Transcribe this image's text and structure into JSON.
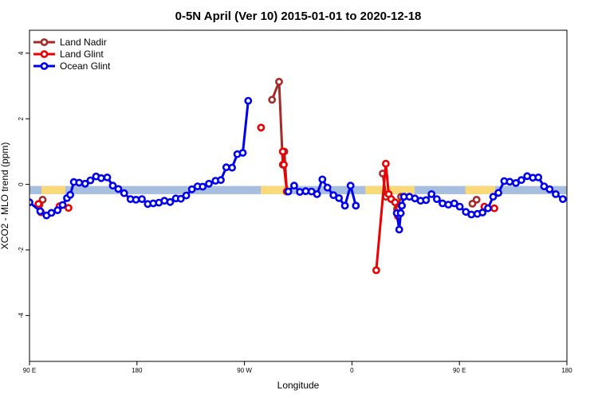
{
  "chart_data": {
    "type": "line",
    "title": "0-5N April (Ver 10)   2015-01-01 to 2020-12-18",
    "xlabel": "Longitude",
    "ylabel": "XCO2 - MLO trend (ppm)",
    "xlim": [
      0,
      360
    ],
    "ylim": [
      -5.4,
      4.7
    ],
    "xticks": [
      {
        "value": 0,
        "label": "90 E"
      },
      {
        "value": 72,
        "label": "180"
      },
      {
        "value": 144,
        "label": "90 W"
      },
      {
        "value": 216,
        "label": "0"
      },
      {
        "value": 288,
        "label": "90 E"
      },
      {
        "value": 360,
        "label": "180"
      }
    ],
    "yticks": [
      {
        "value": -4,
        "label": "-4"
      },
      {
        "value": -2,
        "label": "-2"
      },
      {
        "value": 0,
        "label": "0"
      },
      {
        "value": 2,
        "label": "2"
      },
      {
        "value": 4,
        "label": "4"
      }
    ],
    "legend_position": "top-left",
    "reference_band": {
      "y_range": [
        -0.3,
        -0.05
      ],
      "ocean_color": "#a7bedf",
      "land_color": "#f9d97a",
      "land_segments": [
        [
          8,
          24
        ],
        [
          155,
          175
        ],
        [
          225,
          258
        ],
        [
          292,
          312
        ]
      ]
    },
    "series": [
      {
        "name": "Land Nadir",
        "color": "#a52a2a",
        "segments": [
          [
            [
              6.7,
              -0.62
            ],
            [
              8.8,
              -0.47
            ]
          ],
          [
            [
              162.5,
              2.58
            ],
            [
              167.2,
              3.13
            ],
            [
              169.7,
              0.6
            ],
            [
              170.7,
              1.0
            ],
            [
              172.4,
              -0.22
            ]
          ],
          [
            [
              236.6,
              0.33
            ],
            [
              238.8,
              -0.38
            ]
          ],
          [
            [
              246.2,
              -0.75
            ],
            [
              248.9,
              -0.38
            ]
          ],
          [
            [
              296.7,
              -0.59
            ],
            [
              299.5,
              -0.47
            ]
          ]
        ]
      },
      {
        "name": "Land Glint",
        "color": "#ee0000",
        "segments": [
          [
            [
              6.0,
              -0.6
            ],
            [
              7.7,
              -0.85
            ]
          ],
          [
            [
              20.1,
              -0.67
            ],
            [
              26.1,
              -0.72
            ]
          ],
          [
            [
              155.1,
              1.73
            ]
          ],
          [
            [
              169.7,
              1.0
            ],
            [
              170.4,
              0.6
            ],
            [
              172.4,
              -0.22
            ]
          ],
          [
            [
              232.3,
              -2.62
            ],
            [
              238.7,
              0.63
            ],
            [
              240.6,
              -0.3
            ],
            [
              242.3,
              -0.45
            ],
            [
              244.9,
              -0.55
            ],
            [
              246.8,
              -0.97
            ],
            [
              248.6,
              -0.88
            ]
          ],
          [
            [
              304.7,
              -0.68
            ],
            [
              311.4,
              -0.73
            ]
          ]
        ]
      },
      {
        "name": "Ocean Glint",
        "color": "#0000ee",
        "segments": [
          [
            [
              0.0,
              -0.55
            ],
            [
              7.2,
              -0.82
            ],
            [
              11.4,
              -0.95
            ],
            [
              14.7,
              -0.87
            ],
            [
              18.8,
              -0.79
            ],
            [
              22.2,
              -0.63
            ],
            [
              25.1,
              -0.42
            ],
            [
              27.3,
              -0.32
            ],
            [
              29.7,
              0.07
            ],
            [
              33.3,
              0.05
            ],
            [
              37.3,
              0.02
            ],
            [
              40.8,
              0.12
            ],
            [
              44.6,
              0.24
            ],
            [
              48.0,
              0.19
            ],
            [
              52.1,
              0.21
            ],
            [
              55.8,
              -0.04
            ],
            [
              59.5,
              -0.14
            ],
            [
              63.4,
              -0.27
            ],
            [
              67.7,
              -0.45
            ],
            [
              71.3,
              -0.47
            ],
            [
              75.3,
              -0.45
            ],
            [
              79.2,
              -0.6
            ],
            [
              82.9,
              -0.58
            ],
            [
              86.7,
              -0.56
            ],
            [
              90.4,
              -0.5
            ],
            [
              94.2,
              -0.54
            ],
            [
              98.0,
              -0.43
            ],
            [
              101.4,
              -0.44
            ],
            [
              105.0,
              -0.34
            ],
            [
              108.8,
              -0.15
            ],
            [
              112.6,
              -0.06
            ],
            [
              116.0,
              -0.07
            ],
            [
              120.2,
              0.02
            ],
            [
              124.6,
              0.11
            ],
            [
              128.2,
              0.13
            ],
            [
              131.8,
              0.52
            ],
            [
              135.7,
              0.51
            ],
            [
              139.2,
              0.92
            ],
            [
              142.9,
              0.96
            ],
            [
              146.5,
              2.55
            ]
          ],
          [
            [
              173.4,
              -0.22
            ],
            [
              177.3,
              -0.04
            ],
            [
              181.1,
              -0.23
            ],
            [
              185.0,
              -0.21
            ],
            [
              188.9,
              -0.22
            ],
            [
              192.6,
              -0.3
            ],
            [
              196.2,
              0.15
            ],
            [
              199.6,
              -0.1
            ],
            [
              203.6,
              -0.33
            ],
            [
              207.3,
              -0.42
            ],
            [
              211.3,
              -0.65
            ],
            [
              215.1,
              -0.04
            ],
            [
              218.6,
              -0.65
            ]
          ],
          [
            [
              246.0,
              -0.88
            ],
            [
              247.7,
              -1.38
            ],
            [
              248.7,
              -0.88
            ],
            [
              249.5,
              -0.65
            ],
            [
              250.8,
              -0.38
            ],
            [
              254.5,
              -0.38
            ],
            [
              258.2,
              -0.43
            ],
            [
              262.0,
              -0.5
            ],
            [
              265.6,
              -0.48
            ],
            [
              269.3,
              -0.3
            ],
            [
              272.9,
              -0.45
            ],
            [
              276.7,
              -0.58
            ],
            [
              280.6,
              -0.62
            ],
            [
              284.6,
              -0.58
            ],
            [
              288.2,
              -0.68
            ],
            [
              292.3,
              -0.84
            ],
            [
              296.0,
              -0.92
            ],
            [
              300.0,
              -0.9
            ],
            [
              303.5,
              -0.86
            ],
            [
              307.1,
              -0.73
            ],
            [
              310.6,
              -0.38
            ],
            [
              314.1,
              -0.26
            ],
            [
              318.0,
              0.1
            ],
            [
              321.7,
              0.08
            ],
            [
              325.8,
              0.04
            ],
            [
              329.5,
              0.13
            ],
            [
              333.4,
              0.25
            ],
            [
              337.2,
              0.2
            ],
            [
              340.9,
              0.21
            ],
            [
              344.7,
              -0.06
            ],
            [
              348.4,
              -0.15
            ],
            [
              352.5,
              -0.3
            ],
            [
              357.3,
              -0.45
            ]
          ]
        ]
      }
    ]
  }
}
